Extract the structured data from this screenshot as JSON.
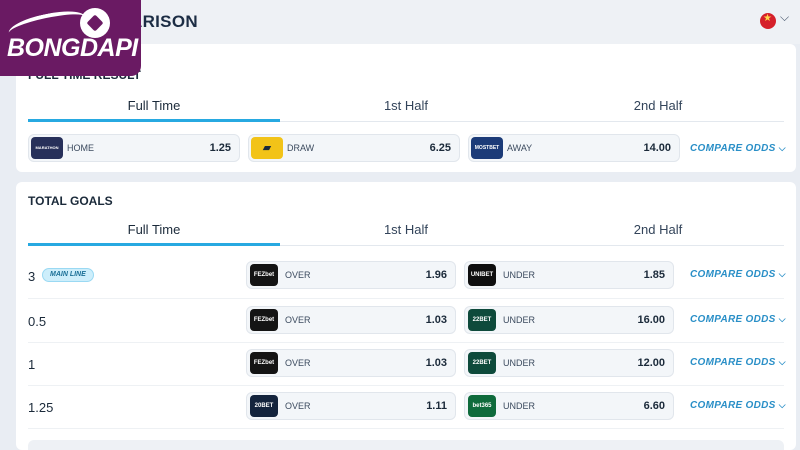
{
  "header": {
    "title": "ARISON",
    "lang_chevron": "⌵"
  },
  "logo": {
    "text": "BONGDAPI"
  },
  "section1": {
    "title": "FULL TIME RESULT",
    "tabs": [
      "Full Time",
      "1st Half",
      "2nd Half"
    ],
    "odds": [
      {
        "bookmaker": "MARATHON BET",
        "label": "HOME",
        "value": "1.25",
        "color": "#27305a"
      },
      {
        "bookmaker": "",
        "label": "DRAW",
        "value": "6.25",
        "color": "#f2c318"
      },
      {
        "bookmaker": "MOSTBET",
        "label": "AWAY",
        "value": "14.00",
        "color": "#1c3b78"
      }
    ],
    "compare_label": "COMPARE ODDS"
  },
  "section2": {
    "title": "TOTAL GOALS",
    "tabs": [
      "Full Time",
      "1st Half",
      "2nd Half"
    ],
    "main_line_badge": "MAIN LINE",
    "compare_label": "COMPARE ODDS",
    "rows": [
      {
        "line": "3",
        "over": {
          "bookmaker": "FEZbet",
          "label": "OVER",
          "value": "1.96",
          "color": "#141414"
        },
        "under": {
          "bookmaker": "UNIBET",
          "label": "UNDER",
          "value": "1.85",
          "color": "#0f0f0f"
        }
      },
      {
        "line": "0.5",
        "over": {
          "bookmaker": "FEZbet",
          "label": "OVER",
          "value": "1.03",
          "color": "#141414"
        },
        "under": {
          "bookmaker": "22BET",
          "label": "UNDER",
          "value": "16.00",
          "color": "#0e4a3b"
        }
      },
      {
        "line": "1",
        "over": {
          "bookmaker": "FEZbet",
          "label": "OVER",
          "value": "1.03",
          "color": "#141414"
        },
        "under": {
          "bookmaker": "22BET",
          "label": "UNDER",
          "value": "12.00",
          "color": "#0e4a3b"
        }
      },
      {
        "line": "1.25",
        "over": {
          "bookmaker": "20BET",
          "label": "OVER",
          "value": "1.11",
          "color": "#14243d"
        },
        "under": {
          "bookmaker": "bet365",
          "label": "UNDER",
          "value": "6.60",
          "color": "#0f6b3c"
        }
      }
    ]
  }
}
